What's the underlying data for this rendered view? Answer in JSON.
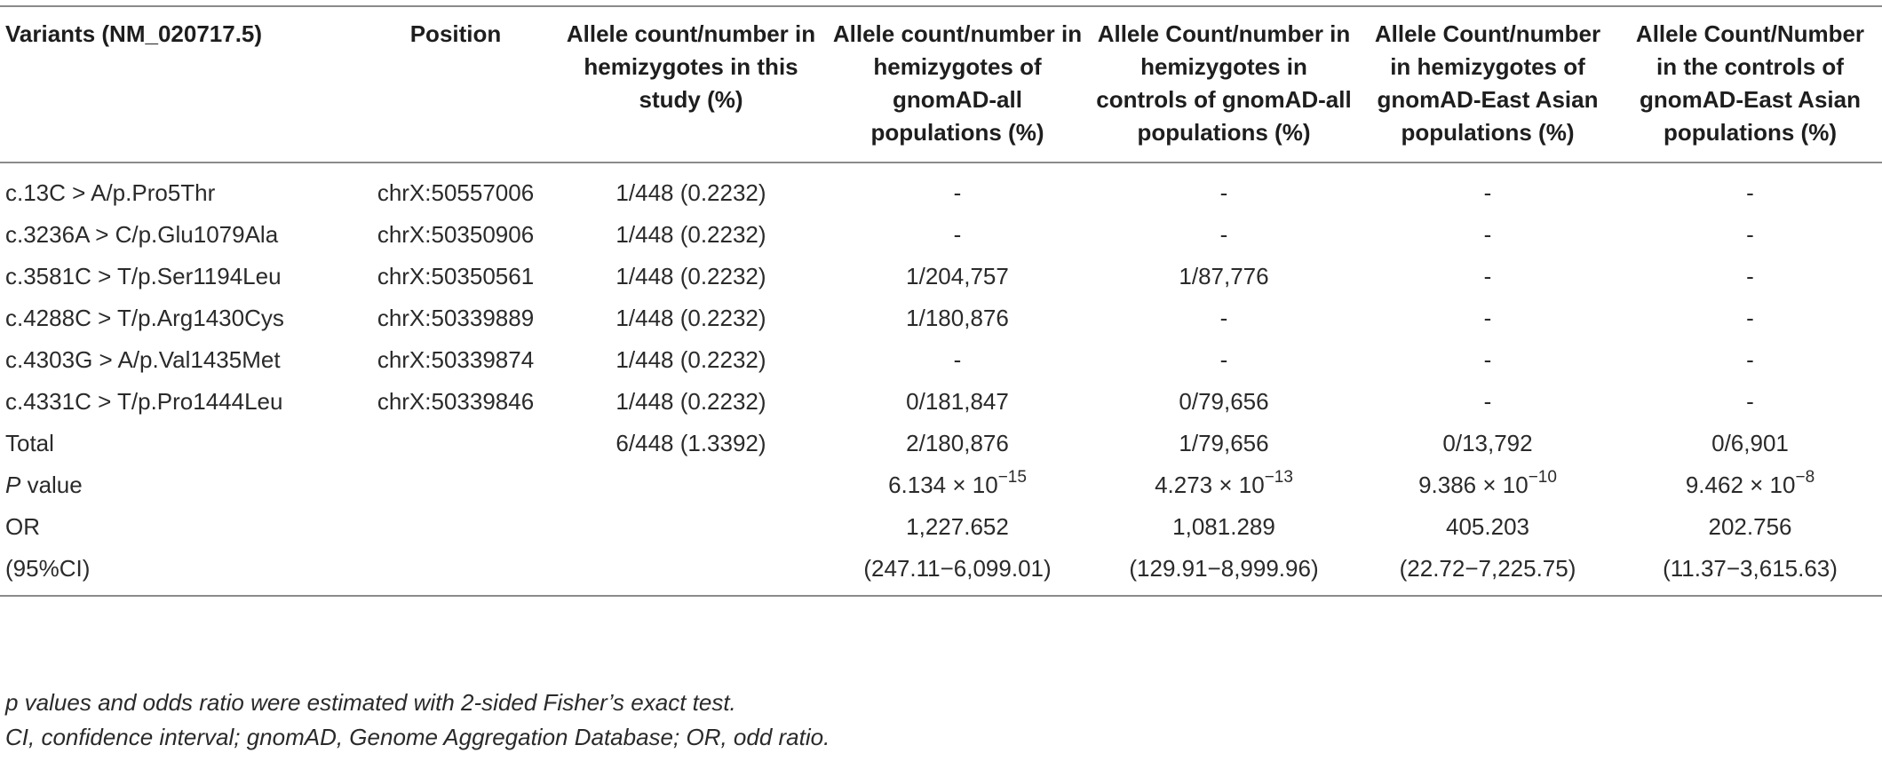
{
  "table": {
    "headers": [
      "Variants (NM_020717.5)",
      "Position",
      "Allele count/number in hemizygotes in this study (%)",
      "Allele count/number in hemizygotes of gnomAD-all populations (%)",
      "Allele Count/number in hemizygotes in controls of gnomAD-all populations (%)",
      "Allele Count/number in hemizygotes of gnomAD-East Asian populations (%)",
      "Allele Count/Number in the controls of gnomAD-East Asian populations (%)"
    ],
    "rows": [
      [
        "c.13C > A/p.Pro5Thr",
        "chrX:50557006",
        "1/448 (0.2232)",
        "-",
        "-",
        "-",
        "-"
      ],
      [
        "c.3236A > C/p.Glu1079Ala",
        "chrX:50350906",
        "1/448 (0.2232)",
        "-",
        "-",
        "-",
        "-"
      ],
      [
        "c.3581C > T/p.Ser1194Leu",
        "chrX:50350561",
        "1/448 (0.2232)",
        "1/204,757",
        "1/87,776",
        "-",
        "-"
      ],
      [
        "c.4288C > T/p.Arg1430Cys",
        "chrX:50339889",
        "1/448 (0.2232)",
        "1/180,876",
        "-",
        "-",
        "-"
      ],
      [
        "c.4303G > A/p.Val1435Met",
        "chrX:50339874",
        "1/448 (0.2232)",
        "-",
        "-",
        "-",
        "-"
      ],
      [
        "c.4331C > T/p.Pro1444Leu",
        "chrX:50339846",
        "1/448 (0.2232)",
        "0/181,847",
        "0/79,656",
        "-",
        "-"
      ],
      [
        "Total",
        "",
        "6/448 (1.3392)",
        "2/180,876",
        "1/79,656",
        "0/13,792",
        "0/6,901"
      ]
    ],
    "pvalue_row": {
      "label_p": "P",
      "label_rest": " value",
      "values": [
        {
          "base": "6.134 × 10",
          "exp": "−15"
        },
        {
          "base": "4.273 × 10",
          "exp": "−13"
        },
        {
          "base": "9.386 × 10",
          "exp": "−10"
        },
        {
          "base": "9.462 × 10",
          "exp": "−8"
        }
      ]
    },
    "or_row": {
      "label": "OR",
      "values": [
        "1,227.652",
        "1,081.289",
        "405.203",
        "202.756"
      ]
    },
    "ci_row": {
      "label": "(95%CI)",
      "values": [
        "(247.11−6,099.01)",
        "(129.91−8,999.96)",
        "(22.72−7,225.75)",
        "(11.37−3,615.63)"
      ]
    }
  },
  "footnotes": [
    "p values and odds ratio were estimated with 2-sided Fisher’s exact test.",
    "CI, confidence interval; gnomAD, Genome Aggregation Database; OR, odd ratio."
  ]
}
